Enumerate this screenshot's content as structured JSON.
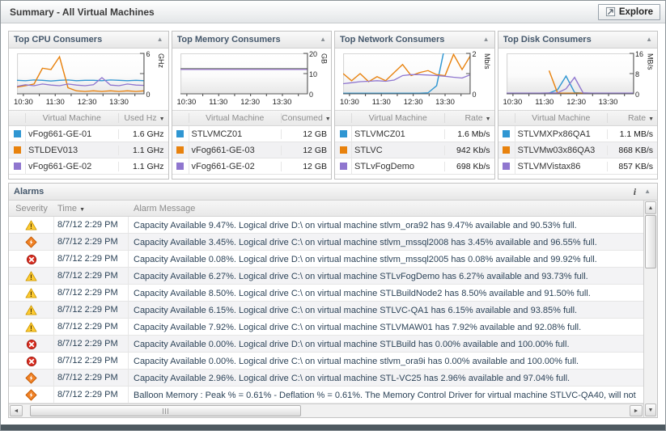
{
  "window": {
    "title": "Summary - All Virtual Machines",
    "explore_label": "Explore",
    "bottom_bar_color": "#4e5a61"
  },
  "icons": {
    "collapse": "▲",
    "sort_desc": "▼",
    "info": "i",
    "scroll_up": "▲",
    "scroll_down": "▼",
    "scroll_left": "◄",
    "scroll_right": "►"
  },
  "panels": [
    {
      "title": "Top CPU Consumers",
      "vm_header": "Virtual Machine",
      "value_header": "Used Hz",
      "rows": [
        {
          "color": "#2f96d2",
          "vm": "vFog661-GE-01",
          "value": "1.6 GHz"
        },
        {
          "color": "#e8820e",
          "vm": "STLDEV013",
          "value": "1.1 GHz"
        },
        {
          "color": "#8f76cf",
          "vm": "vFog661-GE-02",
          "value": "1.1 GHz"
        }
      ]
    },
    {
      "title": "Top Memory Consumers",
      "vm_header": "Virtual Machine",
      "value_header": "Consumed",
      "rows": [
        {
          "color": "#2f96d2",
          "vm": "STLVMCZ01",
          "value": "12 GB"
        },
        {
          "color": "#e8820e",
          "vm": "vFog661-GE-03",
          "value": "12 GB"
        },
        {
          "color": "#8f76cf",
          "vm": "vFog661-GE-02",
          "value": "12 GB"
        }
      ]
    },
    {
      "title": "Top Network Consumers",
      "vm_header": "Virtual Machine",
      "value_header": "Rate",
      "rows": [
        {
          "color": "#2f96d2",
          "vm": "STLVMCZ01",
          "value": "1.6 Mb/s"
        },
        {
          "color": "#e8820e",
          "vm": "STLVC",
          "value": "942 Kb/s"
        },
        {
          "color": "#8f76cf",
          "vm": "STLvFogDemo",
          "value": "698 Kb/s"
        }
      ]
    },
    {
      "title": "Top Disk Consumers",
      "vm_header": "Virtual Machine",
      "value_header": "Rate",
      "rows": [
        {
          "color": "#2f96d2",
          "vm": "STLVMXPx86QA1",
          "value": "1.1 MB/s"
        },
        {
          "color": "#e8820e",
          "vm": "STLVMw03x86QA3",
          "value": "868 KB/s"
        },
        {
          "color": "#8f76cf",
          "vm": "STLVMVistax86",
          "value": "857 KB/s"
        }
      ]
    }
  ],
  "alarms": {
    "title": "Alarms",
    "columns": {
      "severity": "Severity",
      "time": "Time",
      "message": "Alarm Message"
    },
    "rows": [
      {
        "severity": "warning",
        "time": "8/7/12 2:29 PM",
        "message": "Capacity Available 9.47%. Logical drive D:\\ on virtual machine stlvm_ora92 has 9.47% available and 90.53% full."
      },
      {
        "severity": "critical",
        "time": "8/7/12 2:29 PM",
        "message": "Capacity Available 3.45%. Logical drive C:\\ on virtual machine stlvm_mssql2008 has 3.45% available and 96.55% full."
      },
      {
        "severity": "fatal",
        "time": "8/7/12 2:29 PM",
        "message": "Capacity Available 0.08%. Logical drive D:\\ on virtual machine stlvm_mssql2005 has 0.08% available and 99.92% full."
      },
      {
        "severity": "warning",
        "time": "8/7/12 2:29 PM",
        "message": "Capacity Available 6.27%. Logical drive C:\\ on virtual machine STLvFogDemo has 6.27% available and 93.73% full."
      },
      {
        "severity": "warning",
        "time": "8/7/12 2:29 PM",
        "message": "Capacity Available 8.50%. Logical drive C:\\ on virtual machine STLBuildNode2 has 8.50% available and 91.50% full."
      },
      {
        "severity": "warning",
        "time": "8/7/12 2:29 PM",
        "message": "Capacity Available 6.15%. Logical drive C:\\ on virtual machine STLVC-QA1 has 6.15% available and 93.85% full."
      },
      {
        "severity": "warning",
        "time": "8/7/12 2:29 PM",
        "message": "Capacity Available 7.92%. Logical drive C:\\ on virtual machine STLVMAW01 has 7.92% available and 92.08% full."
      },
      {
        "severity": "fatal",
        "time": "8/7/12 2:29 PM",
        "message": "Capacity Available 0.00%. Logical drive D:\\ on virtual machine STLBuild has 0.00% available and 100.00% full."
      },
      {
        "severity": "fatal",
        "time": "8/7/12 2:29 PM",
        "message": "Capacity Available 0.00%. Logical drive C:\\ on virtual machine stlvm_ora9i has 0.00% available and 100.00% full."
      },
      {
        "severity": "critical",
        "time": "8/7/12 2:29 PM",
        "message": "Capacity Available 2.96%. Logical drive C:\\ on virtual machine STL-VC25 has 2.96% available and 97.04% full."
      },
      {
        "severity": "critical",
        "time": "8/7/12 2:29 PM",
        "message": "Balloon Memory : Peak % = 0.61% - Deflation % = 0.61%. The Memory Control Driver for virtual machine STLVC-QA40, will not"
      }
    ]
  },
  "chart_data": [
    {
      "type": "line",
      "title": "Top CPU Consumers",
      "ylabel": "GHz",
      "ylim": [
        0,
        6
      ],
      "y_ticks": [
        {
          "v": 0,
          "label": "0"
        },
        {
          "v": 3,
          "label": ""
        },
        {
          "v": 6,
          "label": "6"
        }
      ],
      "x_ticks": [
        "10:30",
        "11:30",
        "12:30",
        "13:30"
      ],
      "x_tick_pos": [
        0.05,
        0.3,
        0.55,
        0.8
      ],
      "legend_position": "table-below",
      "grid": false,
      "series": [
        {
          "name": "vFog661-GE-01",
          "color": "#2f96d2",
          "values": [
            2.0,
            1.95,
            2.05,
            2.0,
            1.9,
            2.0,
            2.05,
            1.95,
            2.0,
            2.0,
            1.95,
            2.05,
            2.0,
            1.95,
            2.0,
            1.95
          ]
        },
        {
          "name": "STLDEV013",
          "color": "#e8820e",
          "values": [
            1.0,
            1.2,
            1.45,
            3.8,
            3.6,
            5.5,
            0.9,
            0.45,
            0.35,
            0.45,
            0.35,
            0.45,
            0.35,
            0.45,
            0.35,
            0.45
          ]
        },
        {
          "name": "vFog661-GE-02",
          "color": "#8f76cf",
          "values": [
            1.1,
            1.35,
            1.2,
            1.45,
            1.3,
            1.2,
            1.45,
            1.3,
            1.2,
            1.35,
            2.4,
            1.3,
            1.2,
            1.45,
            1.3,
            1.25
          ]
        }
      ]
    },
    {
      "type": "line",
      "title": "Top Memory Consumers",
      "ylabel": "GB",
      "ylim": [
        0,
        20
      ],
      "y_ticks": [
        {
          "v": 0,
          "label": "0"
        },
        {
          "v": 10,
          "label": "10"
        },
        {
          "v": 20,
          "label": "20"
        }
      ],
      "x_ticks": [
        "10:30",
        "11:30",
        "12:30",
        "13:30"
      ],
      "x_tick_pos": [
        0.05,
        0.3,
        0.55,
        0.8
      ],
      "legend_position": "table-below",
      "grid": false,
      "series": [
        {
          "name": "STLVMCZ01",
          "color": "#2f96d2",
          "values": [
            12.5,
            12.5,
            12.5,
            12.5,
            12.5,
            12.5,
            12.5,
            12.5,
            12.5,
            12.5,
            12.5,
            12.5,
            12.5,
            12.5,
            12.5,
            12.5
          ]
        },
        {
          "name": "vFog661-GE-03",
          "color": "#e8820e",
          "values": [
            12.3,
            12.3,
            12.3,
            12.3,
            12.3,
            12.3,
            12.3,
            12.3,
            12.3,
            12.3,
            12.3,
            12.3,
            12.3,
            12.3,
            12.3,
            12.3
          ]
        },
        {
          "name": "vFog661-GE-02",
          "color": "#8f76cf",
          "values": [
            12.1,
            12.1,
            12.1,
            12.1,
            12.1,
            12.1,
            12.1,
            12.1,
            12.1,
            12.1,
            12.1,
            12.1,
            12.1,
            12.1,
            12.1,
            12.1
          ]
        }
      ]
    },
    {
      "type": "line",
      "title": "Top Network Consumers",
      "ylabel": "Mb/s",
      "ylim": [
        0,
        2
      ],
      "y_ticks": [
        {
          "v": 0,
          "label": "0"
        },
        {
          "v": 1,
          "label": ""
        },
        {
          "v": 2,
          "label": "2"
        }
      ],
      "x_ticks": [
        "10:30",
        "11:30",
        "12:30",
        "13:30"
      ],
      "x_tick_pos": [
        0.05,
        0.3,
        0.55,
        0.8
      ],
      "legend_position": "table-below",
      "grid": false,
      "series": [
        {
          "name": "STLVMCZ01",
          "color": "#2f96d2",
          "values": [
            0.03,
            0.03,
            0.03,
            0.03,
            0.03,
            0.03,
            0.03,
            0.03,
            0.03,
            0.03,
            0.05,
            0.4,
            2.4,
            3.2,
            3.3,
            3.4
          ]
        },
        {
          "name": "STLVC",
          "color": "#e8820e",
          "values": [
            1.0,
            0.65,
            1.0,
            0.6,
            0.85,
            0.65,
            1.05,
            1.45,
            0.9,
            1.05,
            1.15,
            0.95,
            0.9,
            1.95,
            1.2,
            1.9
          ]
        },
        {
          "name": "STLvFogDemo",
          "color": "#8f76cf",
          "values": [
            0.5,
            0.55,
            0.6,
            0.62,
            0.65,
            0.62,
            0.68,
            0.9,
            0.95,
            0.95,
            0.93,
            0.9,
            0.87,
            0.82,
            0.78,
            0.95
          ]
        }
      ]
    },
    {
      "type": "line",
      "title": "Top Disk Consumers",
      "ylabel": "MB/s",
      "ylim": [
        0,
        16
      ],
      "y_ticks": [
        {
          "v": 0,
          "label": "0"
        },
        {
          "v": 8,
          "label": "8"
        },
        {
          "v": 16,
          "label": "16"
        }
      ],
      "x_ticks": [
        "10:30",
        "11:30",
        "12:30",
        "13:30"
      ],
      "x_tick_pos": [
        0.05,
        0.3,
        0.55,
        0.8
      ],
      "legend_position": "table-below",
      "grid": false,
      "series": [
        {
          "name": "STLVMXPx86QA1",
          "color": "#2f96d2",
          "values": [
            0.3,
            0.3,
            0.3,
            0.3,
            0.3,
            0.3,
            1.6,
            7.0,
            0.5,
            0.3,
            0.3,
            0.3,
            0.3,
            0.3,
            0.3,
            0.3
          ]
        },
        {
          "name": "STLVMw03x86QA3",
          "color": "#e8820e",
          "values": [
            null,
            null,
            null,
            null,
            null,
            9.2,
            0.3,
            0.25,
            0.25,
            0.25,
            0.25,
            0.25,
            0.25,
            0.25,
            0.25,
            0.25
          ]
        },
        {
          "name": "STLVMVistax86",
          "color": "#8f76cf",
          "values": [
            0.3,
            0.3,
            0.3,
            0.3,
            0.3,
            0.35,
            0.4,
            2.0,
            6.5,
            0.4,
            0.3,
            0.3,
            0.3,
            0.3,
            0.3,
            0.3
          ]
        }
      ]
    }
  ]
}
